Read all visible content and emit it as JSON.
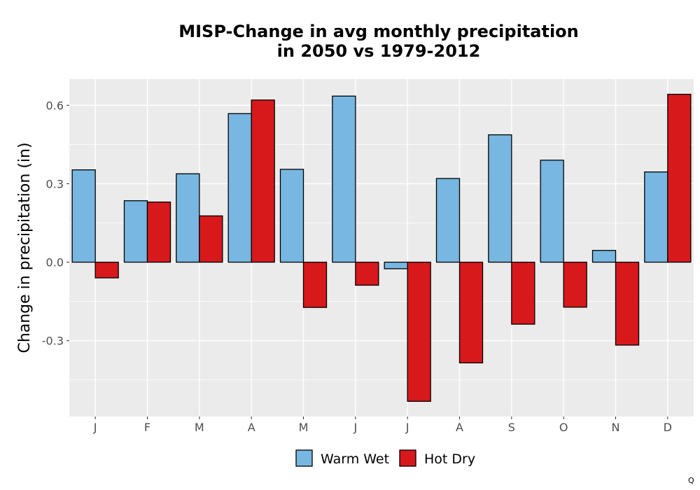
{
  "chart_data": {
    "type": "bar",
    "title": "MISP-Change in avg monthly precipitation\nin 2050 vs 1979-2012",
    "xlabel": "",
    "ylabel": "Change in precipitation (in)",
    "categories": [
      "J",
      "F",
      "M",
      "A",
      "M",
      "J",
      "J",
      "A",
      "S",
      "O",
      "N",
      "D"
    ],
    "series": [
      {
        "name": "Warm Wet",
        "color": "#77b7e1",
        "values": [
          0.353,
          0.235,
          0.338,
          0.568,
          0.355,
          0.635,
          -0.025,
          0.32,
          0.487,
          0.39,
          0.045,
          0.345
        ]
      },
      {
        "name": "Hot Dry",
        "color": "#d7191c",
        "values": [
          -0.06,
          0.23,
          0.177,
          0.62,
          -0.173,
          -0.088,
          -0.532,
          -0.385,
          -0.237,
          -0.172,
          -0.317,
          0.642
        ]
      }
    ],
    "yticks": [
      -0.3,
      0.0,
      0.3,
      0.6
    ],
    "ytick_labels": [
      "-0.3",
      "0.0",
      "0.3",
      "0.6"
    ],
    "ylim": [
      -0.59,
      0.7
    ],
    "grid": true,
    "legend_position": "bottom"
  },
  "corner_mark": "Q"
}
